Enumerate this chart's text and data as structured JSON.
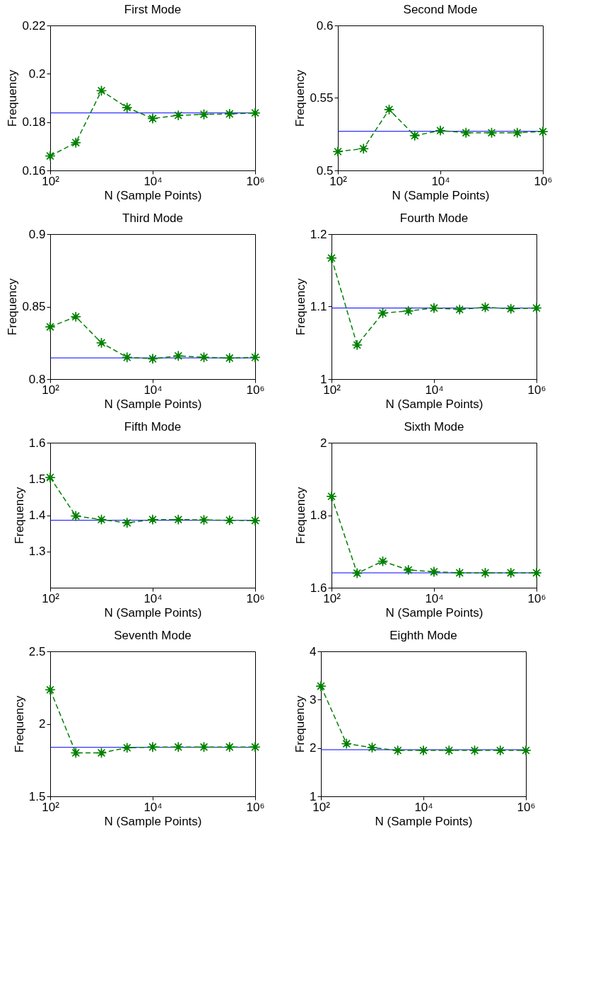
{
  "chart_data": [
    {
      "type": "line",
      "title": "First Mode",
      "xlabel": "N (Sample Points)",
      "ylabel": "Frequency",
      "x": [
        100,
        316.23,
        1000,
        3162.3,
        10000,
        31623,
        100000,
        316228,
        1000000
      ],
      "series": [
        {
          "color": "#008000",
          "values": [
            0.166,
            0.1715,
            0.193,
            0.186,
            0.1815,
            0.1828,
            0.1832,
            0.1834,
            0.1838
          ]
        }
      ],
      "ref_lines": [
        {
          "axis": "y",
          "value": 0.1838,
          "color": "#0000ff"
        }
      ],
      "xlim": [
        100,
        1000000
      ],
      "xticks": [
        {
          "value": 100,
          "label": "10²"
        },
        {
          "value": 10000,
          "label": "10⁴"
        },
        {
          "value": 1000000,
          "label": "10⁶"
        }
      ],
      "ylim": [
        0.16,
        0.22
      ],
      "yticks": [
        0.16,
        0.18,
        0.2,
        0.22
      ],
      "log": "x",
      "grid": false,
      "marker": "star",
      "line_style": "dashed"
    },
    {
      "type": "line",
      "title": "Second Mode",
      "xlabel": "N (Sample Points)",
      "ylabel": "Frequency",
      "x": [
        100,
        316.23,
        1000,
        3162.3,
        10000,
        31623,
        100000,
        316228,
        1000000
      ],
      "series": [
        {
          "color": "#008000",
          "values": [
            0.513,
            0.515,
            0.542,
            0.524,
            0.5275,
            0.526,
            0.526,
            0.526,
            0.5268
          ]
        }
      ],
      "ref_lines": [
        {
          "axis": "y",
          "value": 0.527,
          "color": "#0000ff"
        }
      ],
      "xlim": [
        100,
        1000000
      ],
      "xticks": [
        {
          "value": 100,
          "label": "10²"
        },
        {
          "value": 10000,
          "label": "10⁴"
        },
        {
          "value": 1000000,
          "label": "10⁶"
        }
      ],
      "ylim": [
        0.5,
        0.6
      ],
      "yticks": [
        0.5,
        0.55,
        0.6
      ],
      "log": "x",
      "grid": false,
      "marker": "star",
      "line_style": "dashed"
    },
    {
      "type": "line",
      "title": "Third Mode",
      "xlabel": "N (Sample Points)",
      "ylabel": "Frequency",
      "x": [
        100,
        316.23,
        1000,
        3162.3,
        10000,
        31623,
        100000,
        316228,
        1000000
      ],
      "series": [
        {
          "color": "#008000",
          "values": [
            0.836,
            0.843,
            0.825,
            0.815,
            0.814,
            0.816,
            0.815,
            0.8145,
            0.815
          ]
        }
      ],
      "ref_lines": [
        {
          "axis": "y",
          "value": 0.8146,
          "color": "#0000ff"
        }
      ],
      "xlim": [
        100,
        1000000
      ],
      "xticks": [
        {
          "value": 100,
          "label": "10²"
        },
        {
          "value": 10000,
          "label": "10⁴"
        },
        {
          "value": 1000000,
          "label": "10⁶"
        }
      ],
      "ylim": [
        0.8,
        0.9
      ],
      "yticks": [
        0.8,
        0.85,
        0.9
      ],
      "log": "x",
      "grid": false,
      "marker": "star",
      "line_style": "dashed"
    },
    {
      "type": "line",
      "title": "Fourth Mode",
      "xlabel": "N (Sample Points)",
      "ylabel": "Frequency",
      "x": [
        100,
        316.23,
        1000,
        3162.3,
        10000,
        31623,
        100000,
        316228,
        1000000
      ],
      "series": [
        {
          "color": "#008000",
          "values": [
            1.167,
            1.047,
            1.091,
            1.094,
            1.098,
            1.096,
            1.099,
            1.097,
            1.098
          ]
        }
      ],
      "ref_lines": [
        {
          "axis": "y",
          "value": 1.098,
          "color": "#0000ff"
        }
      ],
      "xlim": [
        100,
        1000000
      ],
      "xticks": [
        {
          "value": 100,
          "label": "10²"
        },
        {
          "value": 10000,
          "label": "10⁴"
        },
        {
          "value": 1000000,
          "label": "10⁶"
        }
      ],
      "ylim": [
        1,
        1.2
      ],
      "yticks": [
        1,
        1.1,
        1.2
      ],
      "log": "x",
      "grid": false,
      "marker": "star",
      "line_style": "dashed"
    },
    {
      "type": "line",
      "title": "Fifth Mode",
      "xlabel": "N (Sample Points)",
      "ylabel": "Frequency",
      "x": [
        100,
        316.23,
        1000,
        3162.3,
        10000,
        31623,
        100000,
        316228,
        1000000
      ],
      "series": [
        {
          "color": "#008000",
          "values": [
            1.504,
            1.398,
            1.388,
            1.379,
            1.388,
            1.388,
            1.387,
            1.386,
            1.385
          ]
        }
      ],
      "ref_lines": [
        {
          "axis": "y",
          "value": 1.386,
          "color": "#0000ff"
        }
      ],
      "xlim": [
        100,
        1000000
      ],
      "xticks": [
        {
          "value": 100,
          "label": "10²"
        },
        {
          "value": 10000,
          "label": "10⁴"
        },
        {
          "value": 1000000,
          "label": "10⁶"
        }
      ],
      "ylim": [
        1.2,
        1.6
      ],
      "yticks": [
        1.3,
        1.4,
        1.5,
        1.6
      ],
      "log": "x",
      "grid": false,
      "marker": "star",
      "line_style": "dashed"
    },
    {
      "type": "line",
      "title": "Sixth Mode",
      "xlabel": "N (Sample Points)",
      "ylabel": "Frequency",
      "x": [
        100,
        316.23,
        1000,
        3162.3,
        10000,
        31623,
        100000,
        316228,
        1000000
      ],
      "series": [
        {
          "color": "#008000",
          "values": [
            1.852,
            1.64,
            1.673,
            1.649,
            1.644,
            1.641,
            1.641,
            1.641,
            1.641
          ]
        }
      ],
      "ref_lines": [
        {
          "axis": "y",
          "value": 1.641,
          "color": "#0000ff"
        }
      ],
      "xlim": [
        100,
        1000000
      ],
      "xticks": [
        {
          "value": 100,
          "label": "10²"
        },
        {
          "value": 10000,
          "label": "10⁴"
        },
        {
          "value": 1000000,
          "label": "10⁶"
        }
      ],
      "ylim": [
        1.6,
        2
      ],
      "yticks": [
        1.6,
        1.8,
        2
      ],
      "log": "x",
      "grid": false,
      "marker": "star",
      "line_style": "dashed"
    },
    {
      "type": "line",
      "title": "Seventh Mode",
      "xlabel": "N (Sample Points)",
      "ylabel": "Frequency",
      "x": [
        100,
        316.23,
        1000,
        3162.3,
        10000,
        31623,
        100000,
        316228,
        1000000
      ],
      "series": [
        {
          "color": "#008000",
          "values": [
            2.235,
            1.8,
            1.8,
            1.835,
            1.84,
            1.84,
            1.84,
            1.84,
            1.84
          ]
        }
      ],
      "ref_lines": [
        {
          "axis": "y",
          "value": 1.838,
          "color": "#0000ff"
        }
      ],
      "xlim": [
        100,
        1000000
      ],
      "xticks": [
        {
          "value": 100,
          "label": "10²"
        },
        {
          "value": 10000,
          "label": "10⁴"
        },
        {
          "value": 1000000,
          "label": "10⁶"
        }
      ],
      "ylim": [
        1.5,
        2.5
      ],
      "yticks": [
        1.5,
        2,
        2.5
      ],
      "log": "x",
      "grid": false,
      "marker": "star",
      "line_style": "dashed"
    },
    {
      "type": "line",
      "title": "Eighth Mode",
      "xlabel": "N (Sample Points)",
      "ylabel": "Frequency",
      "x": [
        100,
        316.23,
        1000,
        3162.3,
        10000,
        31623,
        100000,
        316228,
        1000000
      ],
      "series": [
        {
          "color": "#008000",
          "values": [
            3.28,
            2.09,
            2.01,
            1.95,
            1.95,
            1.95,
            1.95,
            1.95,
            1.95
          ]
        }
      ],
      "ref_lines": [
        {
          "axis": "y",
          "value": 1.965,
          "color": "#0000ff"
        }
      ],
      "xlim": [
        100,
        1000000
      ],
      "xticks": [
        {
          "value": 100,
          "label": "10²"
        },
        {
          "value": 10000,
          "label": "10⁴"
        },
        {
          "value": 1000000,
          "label": "10⁶"
        }
      ],
      "ylim": [
        1,
        4
      ],
      "yticks": [
        1,
        2,
        3,
        4
      ],
      "log": "x",
      "grid": false,
      "marker": "star",
      "line_style": "dashed"
    }
  ]
}
